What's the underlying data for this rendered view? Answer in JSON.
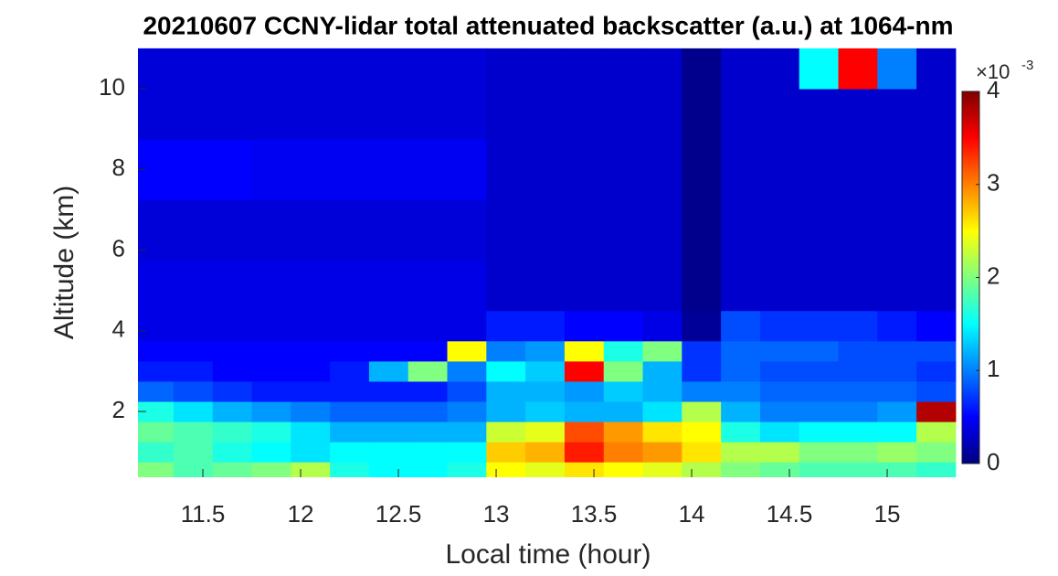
{
  "chart_data": {
    "type": "heatmap",
    "title": "20210607 CCNY-lidar total attenuated backscatter (a.u.) at 1064-nm",
    "xlabel": "Local time (hour)",
    "ylabel": "Altitude (km)",
    "x": [
      11.25,
      11.45,
      11.65,
      11.85,
      12.05,
      12.25,
      12.45,
      12.65,
      12.85,
      13.05,
      13.25,
      13.45,
      13.65,
      13.85,
      14.05,
      14.25,
      14.45,
      14.65,
      14.85,
      15.05,
      15.25
    ],
    "y": [
      0.5,
      1.0,
      1.5,
      2.0,
      2.5,
      3.0,
      3.5,
      4.0,
      5.0,
      6.5,
      8.0,
      9.5,
      10.5
    ],
    "z": [
      [
        2.0,
        1.8,
        1.9,
        2.0,
        2.2,
        1.6,
        1.5,
        1.5,
        1.6,
        2.5,
        2.4,
        2.6,
        2.5,
        2.4,
        2.2,
        2.0,
        1.9,
        1.8,
        1.8,
        1.8,
        1.7
      ],
      [
        1.7,
        1.8,
        1.6,
        1.5,
        1.4,
        1.5,
        1.5,
        1.5,
        1.5,
        2.7,
        2.8,
        3.4,
        3.0,
        2.9,
        2.6,
        2.2,
        2.2,
        2.0,
        2.0,
        2.1,
        2.0
      ],
      [
        1.9,
        1.8,
        1.7,
        1.6,
        1.4,
        1.2,
        1.2,
        1.2,
        1.2,
        2.3,
        2.4,
        3.2,
        2.9,
        2.6,
        2.5,
        1.6,
        1.4,
        1.5,
        1.5,
        1.5,
        2.2
      ],
      [
        1.6,
        1.4,
        1.2,
        1.1,
        1.0,
        0.9,
        0.9,
        0.9,
        1.0,
        1.2,
        1.3,
        1.2,
        1.2,
        1.4,
        2.2,
        1.2,
        1.0,
        1.0,
        1.0,
        1.1,
        3.8
      ],
      [
        0.9,
        0.8,
        0.7,
        0.6,
        0.6,
        0.6,
        0.6,
        0.6,
        0.8,
        1.2,
        1.2,
        1.1,
        1.3,
        1.2,
        1.0,
        1.0,
        0.9,
        0.9,
        0.9,
        0.9,
        0.8
      ],
      [
        0.6,
        0.6,
        0.5,
        0.5,
        0.5,
        0.6,
        1.2,
        2.0,
        1.0,
        1.5,
        1.3,
        3.5,
        2.0,
        1.2,
        0.7,
        0.9,
        0.8,
        0.8,
        0.8,
        0.8,
        0.7
      ],
      [
        0.5,
        0.5,
        0.5,
        0.5,
        0.5,
        0.5,
        0.5,
        0.5,
        2.5,
        1.0,
        1.1,
        2.5,
        1.6,
        2.0,
        0.7,
        0.9,
        0.9,
        0.9,
        0.8,
        0.8,
        0.8
      ],
      [
        0.4,
        0.4,
        0.4,
        0.4,
        0.4,
        0.4,
        0.4,
        0.4,
        0.4,
        0.6,
        0.6,
        0.5,
        0.5,
        0.4,
        0.1,
        0.8,
        0.7,
        0.7,
        0.7,
        0.6,
        0.5
      ],
      [
        0.4,
        0.4,
        0.4,
        0.4,
        0.4,
        0.4,
        0.4,
        0.4,
        0.4,
        0.3,
        0.3,
        0.3,
        0.3,
        0.3,
        0.05,
        0.3,
        0.3,
        0.3,
        0.3,
        0.3,
        0.3
      ],
      [
        0.35,
        0.35,
        0.35,
        0.35,
        0.35,
        0.35,
        0.35,
        0.35,
        0.35,
        0.3,
        0.3,
        0.3,
        0.3,
        0.3,
        0.05,
        0.3,
        0.3,
        0.3,
        0.3,
        0.3,
        0.3
      ],
      [
        0.5,
        0.5,
        0.5,
        0.45,
        0.45,
        0.45,
        0.45,
        0.45,
        0.45,
        0.3,
        0.3,
        0.3,
        0.3,
        0.3,
        0.05,
        0.3,
        0.3,
        0.3,
        0.3,
        0.3,
        0.3
      ],
      [
        0.35,
        0.35,
        0.35,
        0.35,
        0.35,
        0.35,
        0.35,
        0.35,
        0.35,
        0.3,
        0.3,
        0.3,
        0.3,
        0.3,
        0.05,
        0.3,
        0.3,
        0.3,
        0.3,
        0.3,
        0.3
      ],
      [
        0.35,
        0.35,
        0.35,
        0.35,
        0.35,
        0.35,
        0.35,
        0.35,
        0.35,
        0.3,
        0.3,
        0.3,
        0.3,
        0.3,
        0.05,
        0.3,
        0.3,
        1.5,
        3.5,
        1.0,
        0.3
      ]
    ],
    "xlim": [
      11.168,
      15.355
    ],
    "ylim": [
      0.37,
      11.02
    ],
    "xticks": [
      11.5,
      12,
      12.5,
      13,
      13.5,
      14,
      14.5,
      15
    ],
    "yticks": [
      2,
      4,
      6,
      8,
      10
    ],
    "colormap": "jet",
    "clim": [
      0,
      4
    ],
    "cticks": [
      0,
      1,
      2,
      3,
      4
    ],
    "colorbar_multiplier": "×10",
    "colorbar_exponent": "-3"
  }
}
